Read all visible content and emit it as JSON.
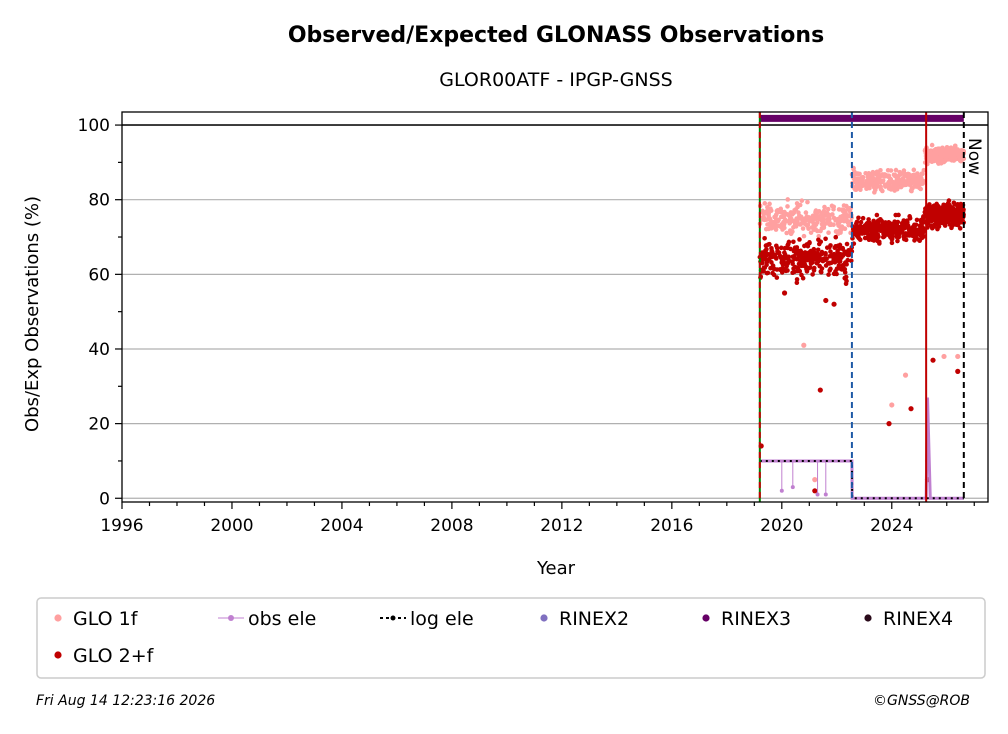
{
  "chart_data": {
    "type": "scatter",
    "title": "Observed/Expected GLONASS Observations",
    "subtitle": "GLOR00ATF - IPGP-GNSS",
    "xlabel": "Year",
    "ylabel": "Obs/Exp Observations (%)",
    "xlim": [
      1996,
      2027.5
    ],
    "ylim": [
      -1,
      103.5
    ],
    "x_ticks": [
      1996,
      2000,
      2004,
      2008,
      2012,
      2016,
      2020,
      2024
    ],
    "y_ticks": [
      0,
      20,
      40,
      60,
      80,
      100
    ],
    "grid": "horizontal",
    "reference_line": 100,
    "now_label": "Now",
    "now_x": 2026.62,
    "vertical_lines": [
      {
        "x": 2019.2,
        "color": "#008000",
        "style": "solid"
      },
      {
        "x": 2019.2,
        "color": "#c00000",
        "style": "dashed"
      },
      {
        "x": 2022.55,
        "color": "#1f5aa6",
        "style": "dashed"
      },
      {
        "x": 2025.25,
        "color": "#c00000",
        "style": "solid"
      },
      {
        "x": 2026.62,
        "color": "#000000",
        "style": "dashed"
      }
    ],
    "legend_position": "bottom",
    "series": [
      {
        "name": "GLO 1f",
        "color": "#ffa0a0",
        "segments": [
          {
            "x0": 2019.2,
            "x1": 2022.55,
            "y": 75,
            "spread": 4
          },
          {
            "x0": 2022.55,
            "x1": 2025.2,
            "y": 85,
            "spread": 2.5
          },
          {
            "x0": 2025.2,
            "x1": 2026.62,
            "y": 92,
            "spread": 2
          }
        ],
        "drops": [
          [
            2021.2,
            5
          ],
          [
            2020.8,
            41
          ],
          [
            2024.0,
            25
          ],
          [
            2025.3,
            10
          ],
          [
            2025.9,
            38
          ],
          [
            2026.4,
            38
          ],
          [
            2024.5,
            33
          ]
        ]
      },
      {
        "name": "GLO 2+f",
        "color": "#c00000",
        "segments": [
          {
            "x0": 2019.2,
            "x1": 2022.55,
            "y": 64,
            "spread": 5
          },
          {
            "x0": 2022.55,
            "x1": 2025.2,
            "y": 72,
            "spread": 3
          },
          {
            "x0": 2025.2,
            "x1": 2026.62,
            "y": 76,
            "spread": 3
          }
        ],
        "drops": [
          [
            2021.2,
            2
          ],
          [
            2021.4,
            29
          ],
          [
            2021.6,
            53
          ],
          [
            2021.9,
            52
          ],
          [
            2023.9,
            20
          ],
          [
            2024.7,
            24
          ],
          [
            2025.3,
            5
          ],
          [
            2025.5,
            37
          ],
          [
            2026.4,
            34
          ],
          [
            2019.25,
            14
          ],
          [
            2020.1,
            55
          ],
          [
            2022.3,
            59
          ]
        ]
      },
      {
        "name": "obs ele",
        "color": "#c080d0",
        "points": [
          [
            2019.2,
            10
          ],
          [
            2022.55,
            10
          ],
          [
            2022.56,
            0
          ],
          [
            2025.25,
            0
          ],
          [
            2025.3,
            27
          ],
          [
            2025.4,
            0
          ],
          [
            2026.62,
            0
          ]
        ],
        "drops": [
          [
            2020.0,
            2
          ],
          [
            2020.4,
            3
          ],
          [
            2021.3,
            1
          ],
          [
            2021.6,
            1
          ]
        ]
      },
      {
        "name": "log ele",
        "color": "#000000",
        "points": [
          [
            2019.2,
            10
          ],
          [
            2022.55,
            10
          ],
          [
            2022.56,
            0
          ],
          [
            2026.62,
            0
          ]
        ]
      },
      {
        "name": "RINEX2",
        "color": "#8070c0",
        "points": []
      },
      {
        "name": "RINEX3",
        "color": "#660066",
        "points": [
          [
            2019.2,
            101.8
          ],
          [
            2026.62,
            101.8
          ]
        ]
      },
      {
        "name": "RINEX4",
        "color": "#2a0a1a",
        "points": []
      }
    ]
  },
  "footer": {
    "timestamp": "Fri Aug 14 12:23:16 2026",
    "credit": "©GNSS@ROB"
  }
}
